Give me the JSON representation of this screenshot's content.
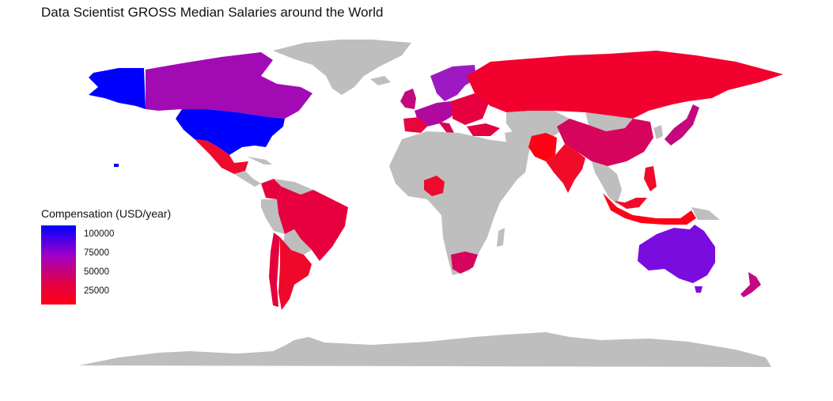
{
  "title": "Data Scientist GROSS Median Salaries around the World",
  "legend": {
    "title": "Compensation (USD/year)",
    "ticks": [
      "100000",
      "75000",
      "50000",
      "25000"
    ]
  },
  "colors": {
    "no_data": "#bebebe",
    "scale_high": "#0000ff",
    "scale_mid": "#a000c8",
    "scale_low": "#ff0014"
  }
}
